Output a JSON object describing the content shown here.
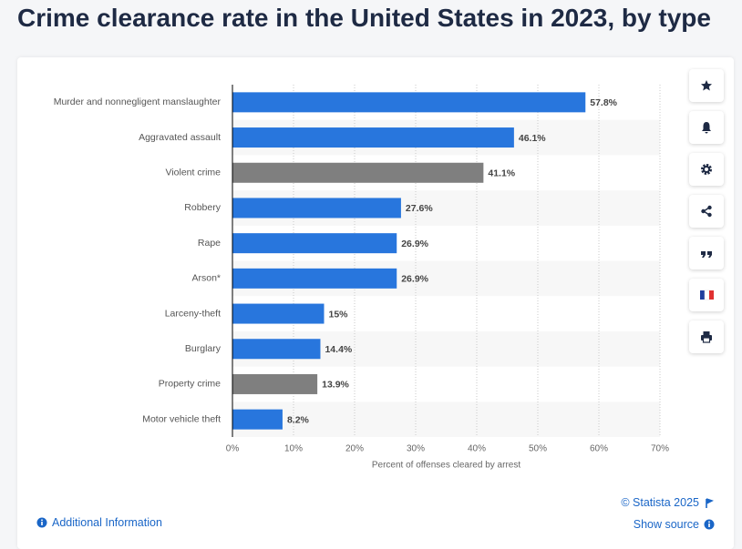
{
  "chart_data": {
    "type": "bar",
    "orientation": "horizontal",
    "title": "Crime clearance rate in the United States in 2023, by type",
    "x_label": "Percent of offenses cleared by arrest",
    "categories": [
      "Murder and nonnegligent manslaughter",
      "Aggravated assault",
      "Violent crime",
      "Robbery",
      "Rape",
      "Arson*",
      "Larceny-theft",
      "Burglary",
      "Property crime",
      "Motor vehicle theft"
    ],
    "values": [
      57.8,
      46.1,
      41.1,
      27.6,
      26.9,
      26.9,
      15,
      14.4,
      13.9,
      8.2
    ],
    "value_labels": [
      "57.8%",
      "46.1%",
      "41.1%",
      "27.6%",
      "26.9%",
      "26.9%",
      "15%",
      "14.4%",
      "13.9%",
      "8.2%"
    ],
    "colors": [
      "#2876dd",
      "#2876dd",
      "#7f7f7f",
      "#2876dd",
      "#2876dd",
      "#2876dd",
      "#2876dd",
      "#2876dd",
      "#7f7f7f",
      "#2876dd"
    ],
    "xlim": [
      0,
      70
    ],
    "xticks": [
      {
        "value": 0,
        "label": "0%"
      },
      {
        "value": 10,
        "label": "10%"
      },
      {
        "value": 20,
        "label": "20%"
      },
      {
        "value": 30,
        "label": "30%"
      },
      {
        "value": 40,
        "label": "40%"
      },
      {
        "value": 50,
        "label": "50%"
      },
      {
        "value": 60,
        "label": "60%"
      },
      {
        "value": 70,
        "label": "70%"
      }
    ],
    "grid": true
  },
  "footer": {
    "copyright": "© Statista 2025",
    "show_source": "Show source",
    "additional_information": "Additional Information"
  }
}
